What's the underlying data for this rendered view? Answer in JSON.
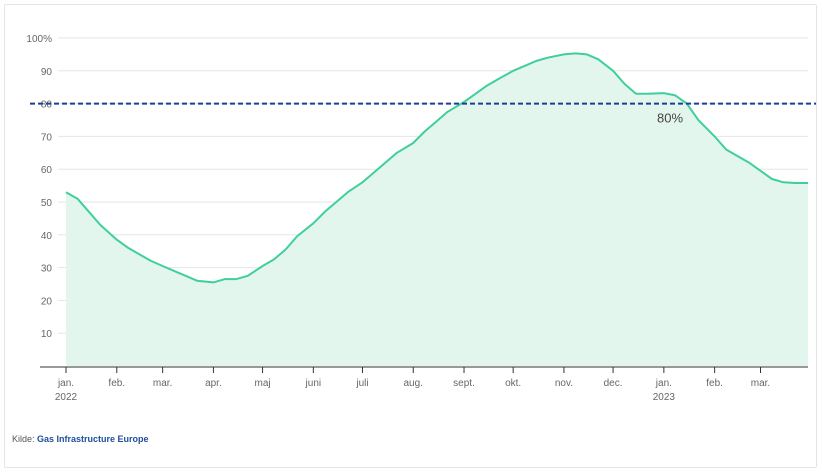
{
  "chart_data": {
    "type": "area",
    "title": "",
    "xlabel": "",
    "ylabel": "",
    "ylim": [
      0,
      100
    ],
    "yticks": [
      10,
      20,
      30,
      40,
      50,
      60,
      70,
      80,
      90,
      100
    ],
    "ytick_labels": [
      "10",
      "20",
      "30",
      "40",
      "50",
      "60",
      "70",
      "80",
      "90",
      "100%"
    ],
    "grid": true,
    "x_months": [
      {
        "label": "jan.",
        "year": "2022"
      },
      {
        "label": "feb.",
        "year": ""
      },
      {
        "label": "mar.",
        "year": ""
      },
      {
        "label": "apr.",
        "year": ""
      },
      {
        "label": "maj",
        "year": ""
      },
      {
        "label": "juni",
        "year": ""
      },
      {
        "label": "juli",
        "year": ""
      },
      {
        "label": "aug.",
        "year": ""
      },
      {
        "label": "sept.",
        "year": ""
      },
      {
        "label": "okt.",
        "year": ""
      },
      {
        "label": "nov.",
        "year": ""
      },
      {
        "label": "dec.",
        "year": ""
      },
      {
        "label": "jan.",
        "year": "2023"
      },
      {
        "label": "feb.",
        "year": ""
      },
      {
        "label": "mar.",
        "year": ""
      }
    ],
    "series": [
      {
        "x": [
          "2022-01-01",
          "2022-01-08",
          "2022-01-15",
          "2022-01-22",
          "2022-02-01",
          "2022-02-08",
          "2022-02-15",
          "2022-02-22",
          "2022-03-01",
          "2022-03-08",
          "2022-03-15",
          "2022-03-22",
          "2022-04-01",
          "2022-04-08",
          "2022-04-15",
          "2022-04-22",
          "2022-05-01",
          "2022-05-08",
          "2022-05-15",
          "2022-05-22",
          "2022-06-01",
          "2022-06-08",
          "2022-06-15",
          "2022-06-22",
          "2022-07-01",
          "2022-07-08",
          "2022-07-15",
          "2022-07-22",
          "2022-08-01",
          "2022-08-08",
          "2022-08-15",
          "2022-08-22",
          "2022-09-01",
          "2022-09-08",
          "2022-09-15",
          "2022-09-22",
          "2022-10-01",
          "2022-10-08",
          "2022-10-15",
          "2022-10-22",
          "2022-11-01",
          "2022-11-08",
          "2022-11-15",
          "2022-11-22",
          "2022-12-01",
          "2022-12-08",
          "2022-12-15",
          "2022-12-22",
          "2023-01-01",
          "2023-01-08",
          "2023-01-15",
          "2023-01-22",
          "2023-02-01",
          "2023-02-08",
          "2023-02-15",
          "2023-02-22",
          "2023-03-01",
          "2023-03-08",
          "2023-03-15",
          "2023-03-22",
          "2023-03-30"
        ],
        "values": [
          53,
          51,
          47,
          43,
          38.5,
          36,
          34,
          32,
          30.5,
          29,
          27.5,
          26,
          25.5,
          26.5,
          26.5,
          27.5,
          30.5,
          32.5,
          35.5,
          39.5,
          43.5,
          47,
          50,
          53,
          56,
          59,
          62,
          65,
          68,
          71.5,
          74.5,
          77.5,
          80.5,
          83,
          85.5,
          87.5,
          90,
          91.5,
          93,
          94,
          95,
          95.3,
          95,
          93.5,
          90,
          86,
          83,
          83,
          83.2,
          82.5,
          80,
          75,
          70,
          66,
          64,
          62,
          59.5,
          57,
          56,
          55.8,
          55.8
        ],
        "color": "#3fcf9b",
        "fill": "#e3f6ee"
      }
    ],
    "reference_line": {
      "value": 80,
      "label": "80%",
      "color": "#1c3f94",
      "style": "dashed"
    }
  },
  "source": {
    "prefix": "Kilde: ",
    "name": "Gas Infrastructure Europe"
  }
}
